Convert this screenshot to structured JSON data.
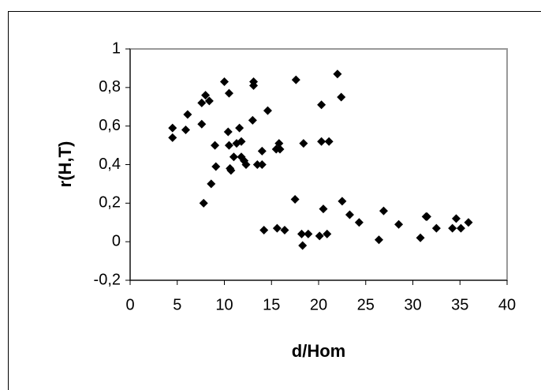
{
  "chart_data": {
    "type": "scatter",
    "x_label": "d/Hom",
    "y_label": "r(H,T)",
    "color": "#000000",
    "x": [
      4.5,
      4.5,
      5.9,
      6.1,
      7.6,
      8.0,
      8.4,
      7.6,
      7.8,
      8.6,
      9.0,
      9.1,
      10.0,
      10.5,
      10.4,
      10.5,
      10.6,
      10.7,
      11.0,
      11.3,
      11.6,
      11.8,
      11.8,
      12.1,
      12.3,
      13.0,
      13.1,
      13.1,
      13.5,
      14.0,
      14.0,
      14.2,
      14.6,
      15.5,
      15.8,
      15.9,
      15.6,
      16.4,
      17.6,
      17.5,
      18.4,
      18.2,
      18.3,
      18.9,
      20.1,
      20.3,
      20.3,
      20.5,
      20.9,
      21.1,
      22.0,
      22.4,
      22.5,
      23.3,
      24.3,
      26.4,
      26.9,
      28.5,
      30.8,
      31.4,
      31.5,
      32.5,
      34.2,
      34.6,
      35.1,
      35.9
    ],
    "values": [
      0.59,
      0.54,
      0.58,
      0.66,
      0.72,
      0.76,
      0.73,
      0.61,
      0.2,
      0.3,
      0.5,
      0.39,
      0.83,
      0.77,
      0.57,
      0.5,
      0.38,
      0.37,
      0.44,
      0.51,
      0.59,
      0.52,
      0.44,
      0.42,
      0.4,
      0.63,
      0.83,
      0.81,
      0.4,
      0.47,
      0.4,
      0.06,
      0.68,
      0.48,
      0.51,
      0.48,
      0.07,
      0.06,
      0.84,
      0.22,
      0.51,
      0.04,
      -0.02,
      0.04,
      0.03,
      0.71,
      0.52,
      0.17,
      0.04,
      0.52,
      0.87,
      0.75,
      0.21,
      0.14,
      0.1,
      0.01,
      0.16,
      0.09,
      0.02,
      0.13,
      0.13,
      0.07,
      0.07,
      0.12,
      0.07,
      0.1
    ],
    "xlim": [
      0,
      40
    ],
    "xticks": [
      0,
      5,
      10,
      15,
      20,
      25,
      30,
      35,
      40
    ],
    "ylim": [
      -0.2,
      1
    ],
    "yticks": [
      {
        "value": -0.2,
        "label": "-0,2"
      },
      0,
      {
        "value": 0.2,
        "label": "0,2"
      },
      {
        "value": 0.4,
        "label": "0,4"
      },
      {
        "value": 0.6,
        "label": "0,6"
      },
      {
        "value": 0.8,
        "label": "0,8"
      },
      1
    ]
  }
}
